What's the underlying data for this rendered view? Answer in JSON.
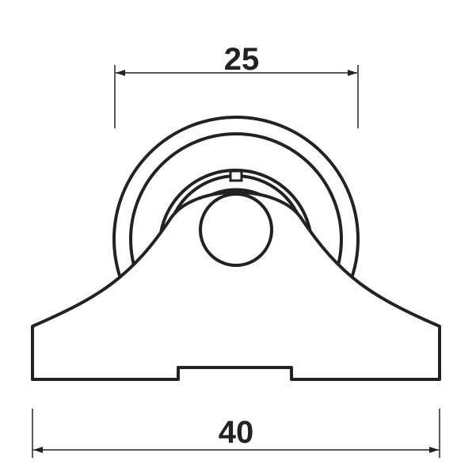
{
  "drawing": {
    "top_dimension": {
      "label": "25"
    },
    "bottom_dimension": {
      "label": "40"
    },
    "stroke_color": "#222222",
    "background_color": "#ffffff"
  }
}
